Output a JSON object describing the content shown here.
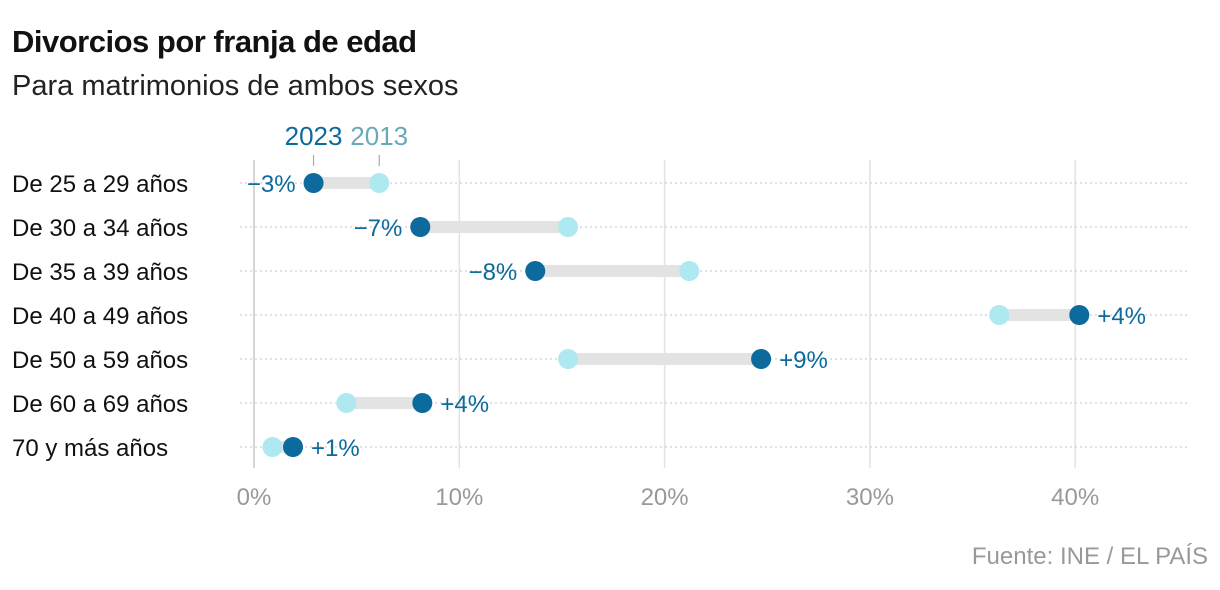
{
  "header": {
    "title": "Divorcios por franja de edad",
    "subtitle": "Para matrimonios de ambos sexos"
  },
  "footer": {
    "source": "Fuente: INE / EL PAÍS"
  },
  "colors": {
    "y2023": "#0d6a9c",
    "y2013": "#aee9f1",
    "connector": "#e3e3e3",
    "grid": "#e2e2e2"
  },
  "chart_data": {
    "type": "dumbbell",
    "title": "Divorcios por franja de edad",
    "subtitle": "Para matrimonios de ambos sexos",
    "xlabel": "",
    "ylabel": "",
    "xlim": [
      0,
      45
    ],
    "x_ticks": [
      0,
      10,
      20,
      30,
      40
    ],
    "x_tick_labels": [
      "0%",
      "10%",
      "20%",
      "30%",
      "40%"
    ],
    "grid": true,
    "legend": {
      "position": "top",
      "entries": [
        "2023",
        "2013"
      ]
    },
    "categories": [
      "De 25 a 29 años",
      "De 30 a 34 años",
      "De 35 a 39 años",
      "De 40 a 49 años",
      "De 50 a 59 años",
      "De 60 a 69 años",
      "70 y más años"
    ],
    "series": [
      {
        "name": "2023",
        "values": [
          2.9,
          8.1,
          13.7,
          40.2,
          24.7,
          8.2,
          1.9
        ]
      },
      {
        "name": "2013",
        "values": [
          6.1,
          15.3,
          21.2,
          36.3,
          15.3,
          4.5,
          0.9
        ]
      }
    ],
    "change_labels": [
      "−3%",
      "−7%",
      "−8%",
      "+4%",
      "+9%",
      "+4%",
      "+1%"
    ]
  }
}
